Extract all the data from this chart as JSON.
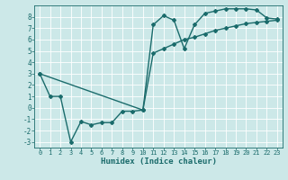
{
  "xlabel": "Humidex (Indice chaleur)",
  "bg_color": "#cce8e8",
  "line_color": "#1a6b6b",
  "grid_color": "#ffffff",
  "xlim": [
    -0.5,
    23.5
  ],
  "ylim": [
    -3.5,
    9.0
  ],
  "xticks": [
    0,
    1,
    2,
    3,
    4,
    5,
    6,
    7,
    8,
    9,
    10,
    11,
    12,
    13,
    14,
    15,
    16,
    17,
    18,
    19,
    20,
    21,
    22,
    23
  ],
  "yticks": [
    -3,
    -2,
    -1,
    0,
    1,
    2,
    3,
    4,
    5,
    6,
    7,
    8
  ],
  "line1_x": [
    0,
    1,
    2,
    3,
    4,
    5,
    6,
    7,
    8,
    9,
    10,
    11,
    12,
    13,
    14,
    15,
    16,
    17,
    18,
    19,
    20,
    21,
    22,
    23
  ],
  "line1_y": [
    3.0,
    1.0,
    1.0,
    -3.0,
    -1.2,
    -1.5,
    -1.3,
    -1.3,
    -0.3,
    -0.3,
    -0.2,
    7.3,
    8.1,
    7.7,
    5.2,
    7.3,
    8.3,
    8.5,
    8.7,
    8.7,
    8.7,
    8.6,
    7.9,
    7.8
  ],
  "line2_x": [
    0,
    10,
    11,
    12,
    13,
    14,
    15,
    16,
    17,
    18,
    19,
    20,
    21,
    22,
    23
  ],
  "line2_y": [
    3.0,
    -0.2,
    4.8,
    5.2,
    5.6,
    6.0,
    6.2,
    6.5,
    6.8,
    7.0,
    7.2,
    7.4,
    7.5,
    7.6,
    7.7
  ],
  "marker": "D",
  "markersize": 2.0,
  "linewidth": 1.0,
  "tick_fontsize": 5.0,
  "xlabel_fontsize": 6.5
}
